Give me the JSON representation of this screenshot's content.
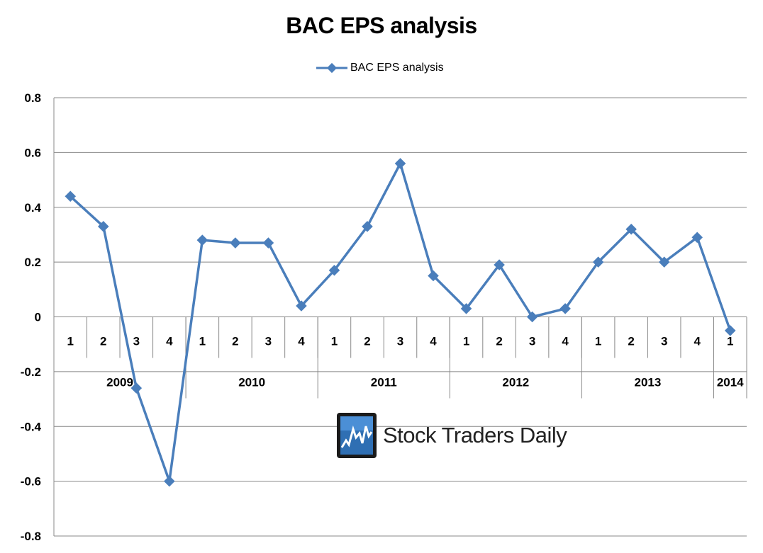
{
  "chart_data": {
    "type": "line",
    "title": "BAC EPS analysis",
    "xlabel": "",
    "ylabel": "",
    "ylim": [
      -0.8,
      0.8
    ],
    "yticks": [
      "0.8",
      "0.6",
      "0.4",
      "0.2",
      "0",
      "-0.2",
      "-0.4",
      "-0.6",
      "-0.8"
    ],
    "quarters": [
      "1",
      "2",
      "3",
      "4",
      "1",
      "2",
      "3",
      "4",
      "1",
      "2",
      "3",
      "4",
      "1",
      "2",
      "3",
      "4",
      "1",
      "2",
      "3",
      "4",
      "1"
    ],
    "years": [
      {
        "label": "2009",
        "count": 4
      },
      {
        "label": "2010",
        "count": 4
      },
      {
        "label": "2011",
        "count": 4
      },
      {
        "label": "2012",
        "count": 4
      },
      {
        "label": "2013",
        "count": 4
      },
      {
        "label": "2014",
        "count": 1
      }
    ],
    "series": [
      {
        "name": "BAC EPS analysis",
        "values": [
          0.44,
          0.33,
          -0.26,
          -0.6,
          0.28,
          0.27,
          0.27,
          0.04,
          0.17,
          0.33,
          0.56,
          0.15,
          0.03,
          0.19,
          0.0,
          0.03,
          0.2,
          0.32,
          0.2,
          0.29,
          -0.05
        ]
      }
    ],
    "grid": true,
    "legend_position": "top-center",
    "colors": {
      "series": "#4a7ebb",
      "grid": "#888888"
    }
  },
  "watermark": {
    "text": "Stock Traders Daily",
    "icon": "stock-chart-logo-icon"
  }
}
